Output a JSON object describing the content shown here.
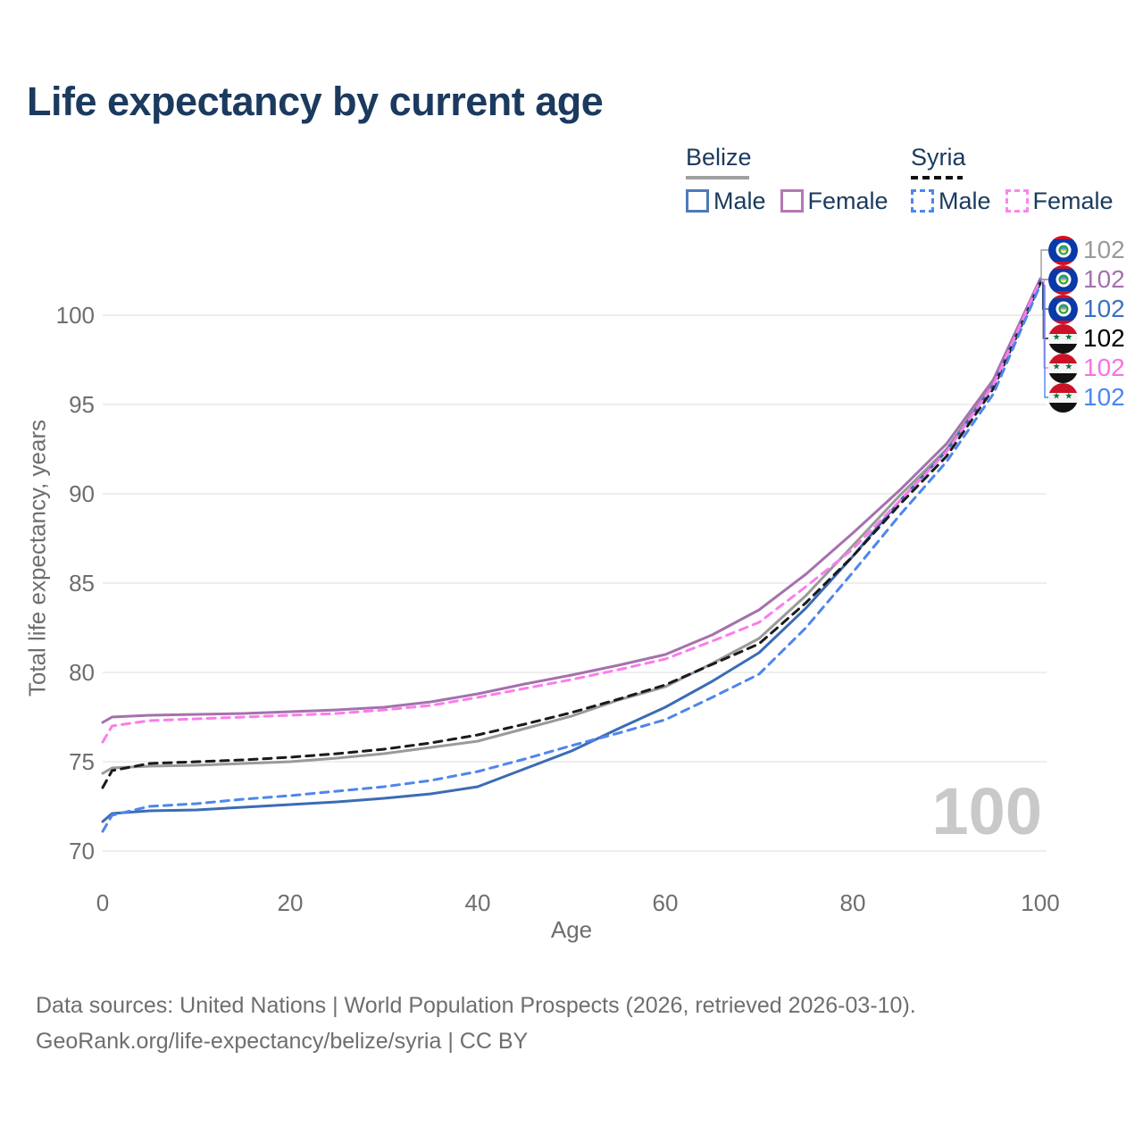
{
  "header": {
    "title": "Life expectancy by current age"
  },
  "legend": {
    "groups": [
      {
        "label": "Belize",
        "style": "solid",
        "underline_color": "#a0a0a0",
        "items": [
          {
            "label": "Male",
            "color": "#4d7ab8"
          },
          {
            "label": "Female",
            "color": "#b478b4"
          }
        ]
      },
      {
        "label": "Syria",
        "style": "dashed",
        "underline_color": "#111111",
        "items": [
          {
            "label": "Male",
            "color": "#4b87f0"
          },
          {
            "label": "Female",
            "color": "#fb85ee"
          }
        ]
      }
    ]
  },
  "chart_data": {
    "type": "line",
    "title": "Life expectancy by current age",
    "xlabel": "Age",
    "ylabel": "Total life expectancy, years",
    "xlim": [
      0,
      100
    ],
    "ylim": [
      70,
      102.5
    ],
    "xticks": [
      0,
      20,
      40,
      60,
      80,
      100
    ],
    "yticks": [
      70,
      75,
      80,
      85,
      90,
      95,
      100
    ],
    "grid": "horizontal",
    "legend_position": "top-right",
    "age_counter": "100",
    "x": [
      0,
      1,
      5,
      10,
      15,
      20,
      25,
      30,
      35,
      40,
      45,
      50,
      55,
      60,
      65,
      70,
      75,
      80,
      85,
      90,
      95,
      100
    ],
    "series": [
      {
        "id": "belize_total",
        "name": "Belize (both sexes)",
        "country": "Belize",
        "sex": "total",
        "color": "#9a9a9a",
        "dash": false,
        "values": [
          74.35,
          74.65,
          74.75,
          74.8,
          74.9,
          75.0,
          75.2,
          75.45,
          75.8,
          76.15,
          76.85,
          77.55,
          78.45,
          79.2,
          80.5,
          81.9,
          84.3,
          87.1,
          89.9,
          92.5,
          96.2,
          101.95
        ]
      },
      {
        "id": "belize_female",
        "name": "Belize female",
        "country": "Belize",
        "sex": "female",
        "color": "#a571ad",
        "dash": false,
        "values": [
          77.2,
          77.5,
          77.6,
          77.65,
          77.7,
          77.8,
          77.9,
          78.05,
          78.35,
          78.8,
          79.35,
          79.85,
          80.4,
          81.0,
          82.1,
          83.5,
          85.5,
          87.8,
          90.2,
          92.8,
          96.4,
          102.05
        ]
      },
      {
        "id": "belize_male",
        "name": "Belize male",
        "country": "Belize",
        "sex": "male",
        "color": "#3b6cb4",
        "dash": false,
        "values": [
          71.65,
          72.1,
          72.25,
          72.3,
          72.45,
          72.6,
          72.75,
          72.95,
          73.2,
          73.6,
          74.6,
          75.6,
          76.85,
          78.05,
          79.5,
          81.1,
          83.6,
          86.5,
          89.6,
          92.4,
          96.1,
          101.9
        ]
      },
      {
        "id": "syria_total",
        "name": "Syria (both sexes)",
        "country": "Syria",
        "sex": "total",
        "color": "#1a1a1a",
        "dash": true,
        "values": [
          73.55,
          74.5,
          74.9,
          75.0,
          75.1,
          75.25,
          75.45,
          75.7,
          76.05,
          76.5,
          77.1,
          77.75,
          78.5,
          79.3,
          80.45,
          81.6,
          83.9,
          86.5,
          89.4,
          92.1,
          95.9,
          101.8
        ]
      },
      {
        "id": "syria_female",
        "name": "Syria female",
        "country": "Syria",
        "sex": "female",
        "color": "#fb7deb",
        "dash": true,
        "values": [
          76.1,
          77.0,
          77.3,
          77.4,
          77.5,
          77.6,
          77.7,
          77.9,
          78.15,
          78.6,
          79.1,
          79.6,
          80.15,
          80.75,
          81.75,
          82.8,
          84.8,
          86.9,
          89.6,
          92.35,
          96.1,
          101.95
        ]
      },
      {
        "id": "syria_male",
        "name": "Syria male",
        "country": "Syria",
        "sex": "male",
        "color": "#4e86ec",
        "dash": true,
        "values": [
          71.1,
          72.0,
          72.5,
          72.65,
          72.9,
          73.1,
          73.35,
          73.6,
          73.95,
          74.45,
          75.15,
          75.9,
          76.6,
          77.35,
          78.6,
          79.9,
          82.5,
          85.6,
          88.8,
          91.8,
          95.6,
          101.7
        ]
      }
    ],
    "end_labels": [
      {
        "series": "belize_total",
        "flag": "belize",
        "value": "102",
        "color": "#9a9a9a"
      },
      {
        "series": "belize_female",
        "flag": "belize",
        "value": "102",
        "color": "#a571ad"
      },
      {
        "series": "belize_male",
        "flag": "belize",
        "value": "102",
        "color": "#3d6fc4"
      },
      {
        "series": "syria_total",
        "flag": "syria",
        "value": "102",
        "color": "#000000"
      },
      {
        "series": "syria_female",
        "flag": "syria",
        "value": "102",
        "color": "#fb6fe3"
      },
      {
        "series": "syria_male",
        "flag": "syria",
        "value": "102",
        "color": "#4b87f0"
      }
    ]
  },
  "footer": {
    "line1": "Data sources: United Nations | World Population Prospects (2026, retrieved 2026-03-10).",
    "line2": "GeoRank.org/life-expectancy/belize/syria | CC BY"
  }
}
